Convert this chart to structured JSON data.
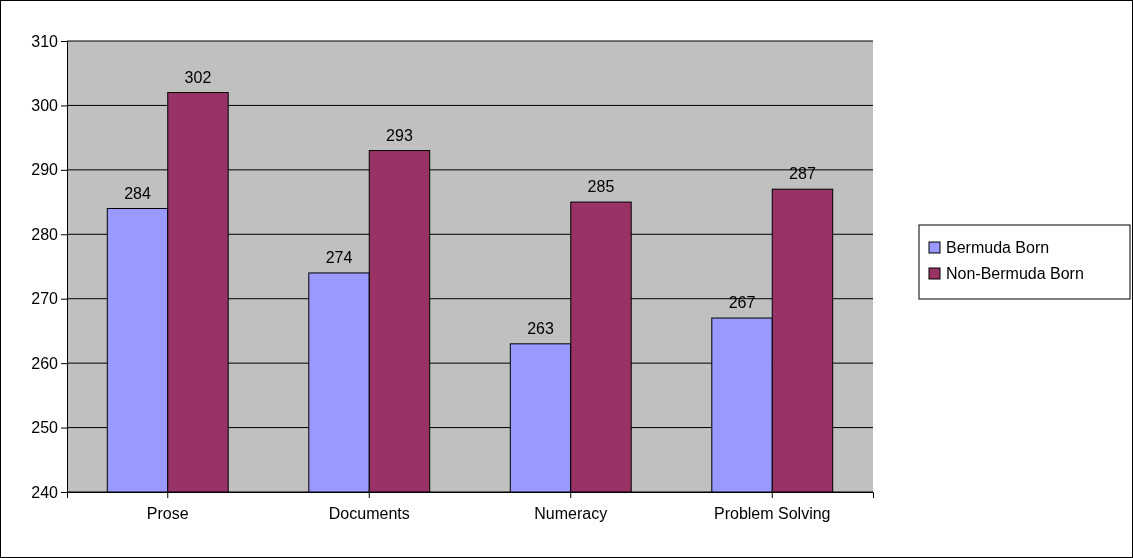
{
  "chart_data": {
    "type": "bar",
    "categories": [
      "Prose",
      "Documents",
      "Numeracy",
      "Problem Solving"
    ],
    "series": [
      {
        "name": "Bermuda Born",
        "color": "#9999ff",
        "values": [
          284,
          274,
          263,
          267
        ]
      },
      {
        "name": "Non-Bermuda Born",
        "color": "#993366",
        "values": [
          302,
          293,
          285,
          287
        ]
      }
    ],
    "ylim": [
      240,
      310
    ],
    "yticks": [
      240,
      250,
      260,
      270,
      280,
      290,
      300,
      310
    ],
    "grid": "y",
    "legend": "right",
    "data_labels": true
  }
}
